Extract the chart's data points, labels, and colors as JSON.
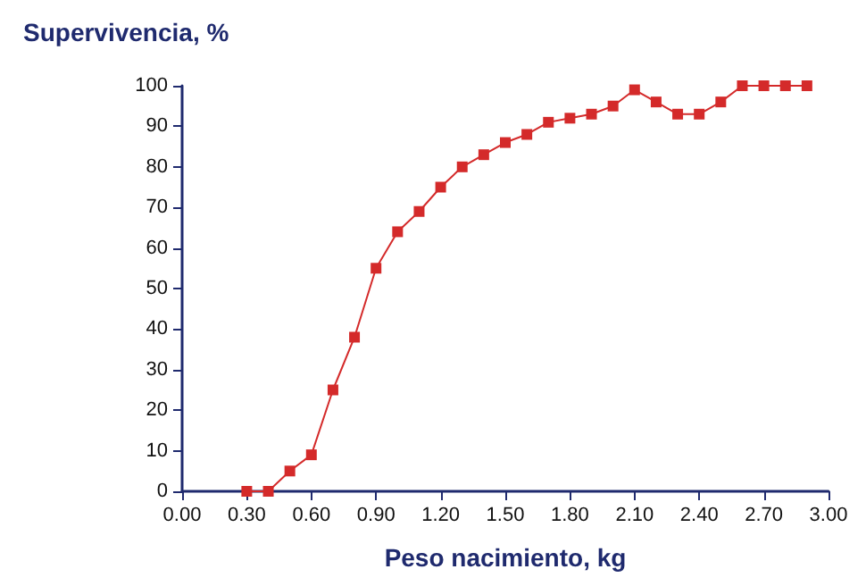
{
  "chart_data": {
    "type": "line",
    "ylabel": "Supervivencia, %",
    "xlabel": "Peso nacimiento, kg",
    "x": [
      0.3,
      0.4,
      0.5,
      0.6,
      0.7,
      0.8,
      0.9,
      1.0,
      1.1,
      1.2,
      1.3,
      1.4,
      1.5,
      1.6,
      1.7,
      1.8,
      1.9,
      2.0,
      2.1,
      2.2,
      2.3,
      2.4,
      2.5,
      2.6,
      2.7,
      2.8,
      2.9
    ],
    "series": [
      {
        "color": "#d42a2a",
        "values": [
          0,
          0,
          5,
          9,
          25,
          38,
          55,
          64,
          69,
          75,
          80,
          83,
          86,
          88,
          91,
          92,
          93,
          95,
          99,
          96,
          93,
          93,
          96,
          100,
          100,
          100,
          100
        ]
      }
    ],
    "xlim": [
      0,
      3
    ],
    "xticks": [
      {
        "value": 0,
        "label": "0.00"
      },
      {
        "value": 0.3,
        "label": "0.30"
      },
      {
        "value": 0.6,
        "label": "0.60"
      },
      {
        "value": 0.9,
        "label": "0.90"
      },
      {
        "value": 1.2,
        "label": "1.20"
      },
      {
        "value": 1.5,
        "label": "1.50"
      },
      {
        "value": 1.8,
        "label": "1.80"
      },
      {
        "value": 2.1,
        "label": "2.10"
      },
      {
        "value": 2.4,
        "label": "2.40"
      },
      {
        "value": 2.7,
        "label": "2.70"
      },
      {
        "value": 3,
        "label": "3.00"
      }
    ],
    "ylim": [
      0,
      100
    ],
    "yticks": [
      0,
      10,
      20,
      30,
      40,
      50,
      60,
      70,
      80,
      90,
      100
    ],
    "grid": false,
    "marker": "square",
    "line_style": "solid"
  }
}
